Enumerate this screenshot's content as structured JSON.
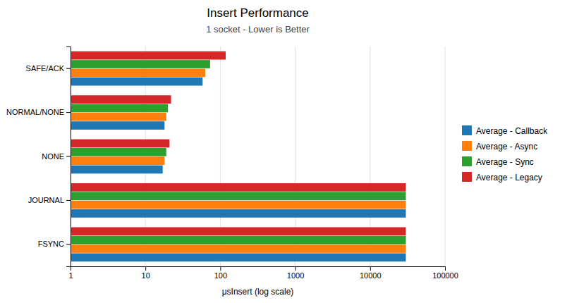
{
  "chart_data": {
    "type": "bar",
    "orientation": "horizontal",
    "title": "Insert Performance",
    "subtitle": "1 socket - Lower is Better",
    "x_label": "μsInsert (log scale)",
    "categories": [
      "FSYNC",
      "JOURNAL",
      "NONE",
      "NORMAL/NONE",
      "SAFE/ACK"
    ],
    "series": [
      {
        "name": "Average - Callback",
        "values": [
          30000,
          30000,
          17,
          18,
          58
        ]
      },
      {
        "name": "Average - Async",
        "values": [
          30000,
          30000,
          18,
          19,
          63
        ]
      },
      {
        "name": "Average - Sync",
        "values": [
          30000,
          30000,
          19,
          20,
          73
        ]
      },
      {
        "name": "Average - Legacy",
        "values": [
          30000,
          30000,
          21,
          22,
          118
        ]
      }
    ],
    "log": "x",
    "xlim": [
      1,
      100000
    ],
    "xticks": [
      1,
      10,
      100,
      1000,
      10000,
      100000
    ],
    "grid": true,
    "legend": "right"
  }
}
